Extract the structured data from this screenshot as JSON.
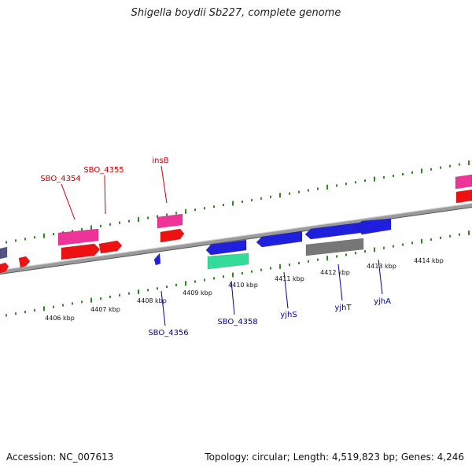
{
  "title": "Shigella boydii Sb227, complete genome",
  "footer": {
    "accession": "Accession: NC_007613",
    "summary": "Topology: circular; Length: 4,519,823 bp; Genes: 4,246"
  },
  "colors": {
    "backbone": "#8c8c8c",
    "tick": "#2f8a1e",
    "label_top": "#cc0000",
    "label_bottom": "#0000aa",
    "gene_red": "#ee1111",
    "gene_pink": "#ee3399",
    "gene_blue": "#1f1fdd",
    "gene_navy": "#555588",
    "gene_teal": "#33dd99",
    "gene_gray": "#777777"
  },
  "scale_labels": [
    "4406 kbp",
    "4407 kbp",
    "4408 kbp",
    "4409 kbp",
    "4410 kbp",
    "4411 kbp",
    "4412 kbp",
    "4413 kbp",
    "4414 kbp"
  ],
  "gene_labels_top": [
    "SBO_4354",
    "SBO_4355",
    "insB"
  ],
  "gene_labels_bottom": [
    "SBO_4356",
    "SBO_4358",
    "yjhS",
    "yjhT",
    "yjhA"
  ],
  "features": [
    {
      "name": "gene-feature",
      "color": "gene_navy"
    },
    {
      "name": "gene-feature",
      "color": "gene_red"
    },
    {
      "name": "gene-feature",
      "color": "gene_red"
    },
    {
      "name": "gene-feature-sbo-4354",
      "color": "gene_pink"
    },
    {
      "name": "gene-feature",
      "color": "gene_red"
    },
    {
      "name": "gene-feature-sbo-4355",
      "color": "gene_red"
    },
    {
      "name": "gene-feature-insb",
      "color": "gene_pink"
    },
    {
      "name": "gene-feature",
      "color": "gene_red"
    },
    {
      "name": "gene-feature-sbo-4356",
      "color": "gene_blue"
    },
    {
      "name": "gene-feature",
      "color": "gene_blue"
    },
    {
      "name": "gene-feature-sbo-4358",
      "color": "gene_teal"
    },
    {
      "name": "gene-feature",
      "color": "gene_blue"
    },
    {
      "name": "gene-feature-yjhs",
      "color": "gene_blue"
    },
    {
      "name": "gene-feature-yjht",
      "color": "gene_blue"
    },
    {
      "name": "gene-feature-yjha",
      "color": "gene_blue"
    },
    {
      "name": "gene-feature",
      "color": "gene_gray"
    },
    {
      "name": "gene-feature",
      "color": "gene_pink"
    },
    {
      "name": "gene-feature",
      "color": "gene_red"
    }
  ]
}
